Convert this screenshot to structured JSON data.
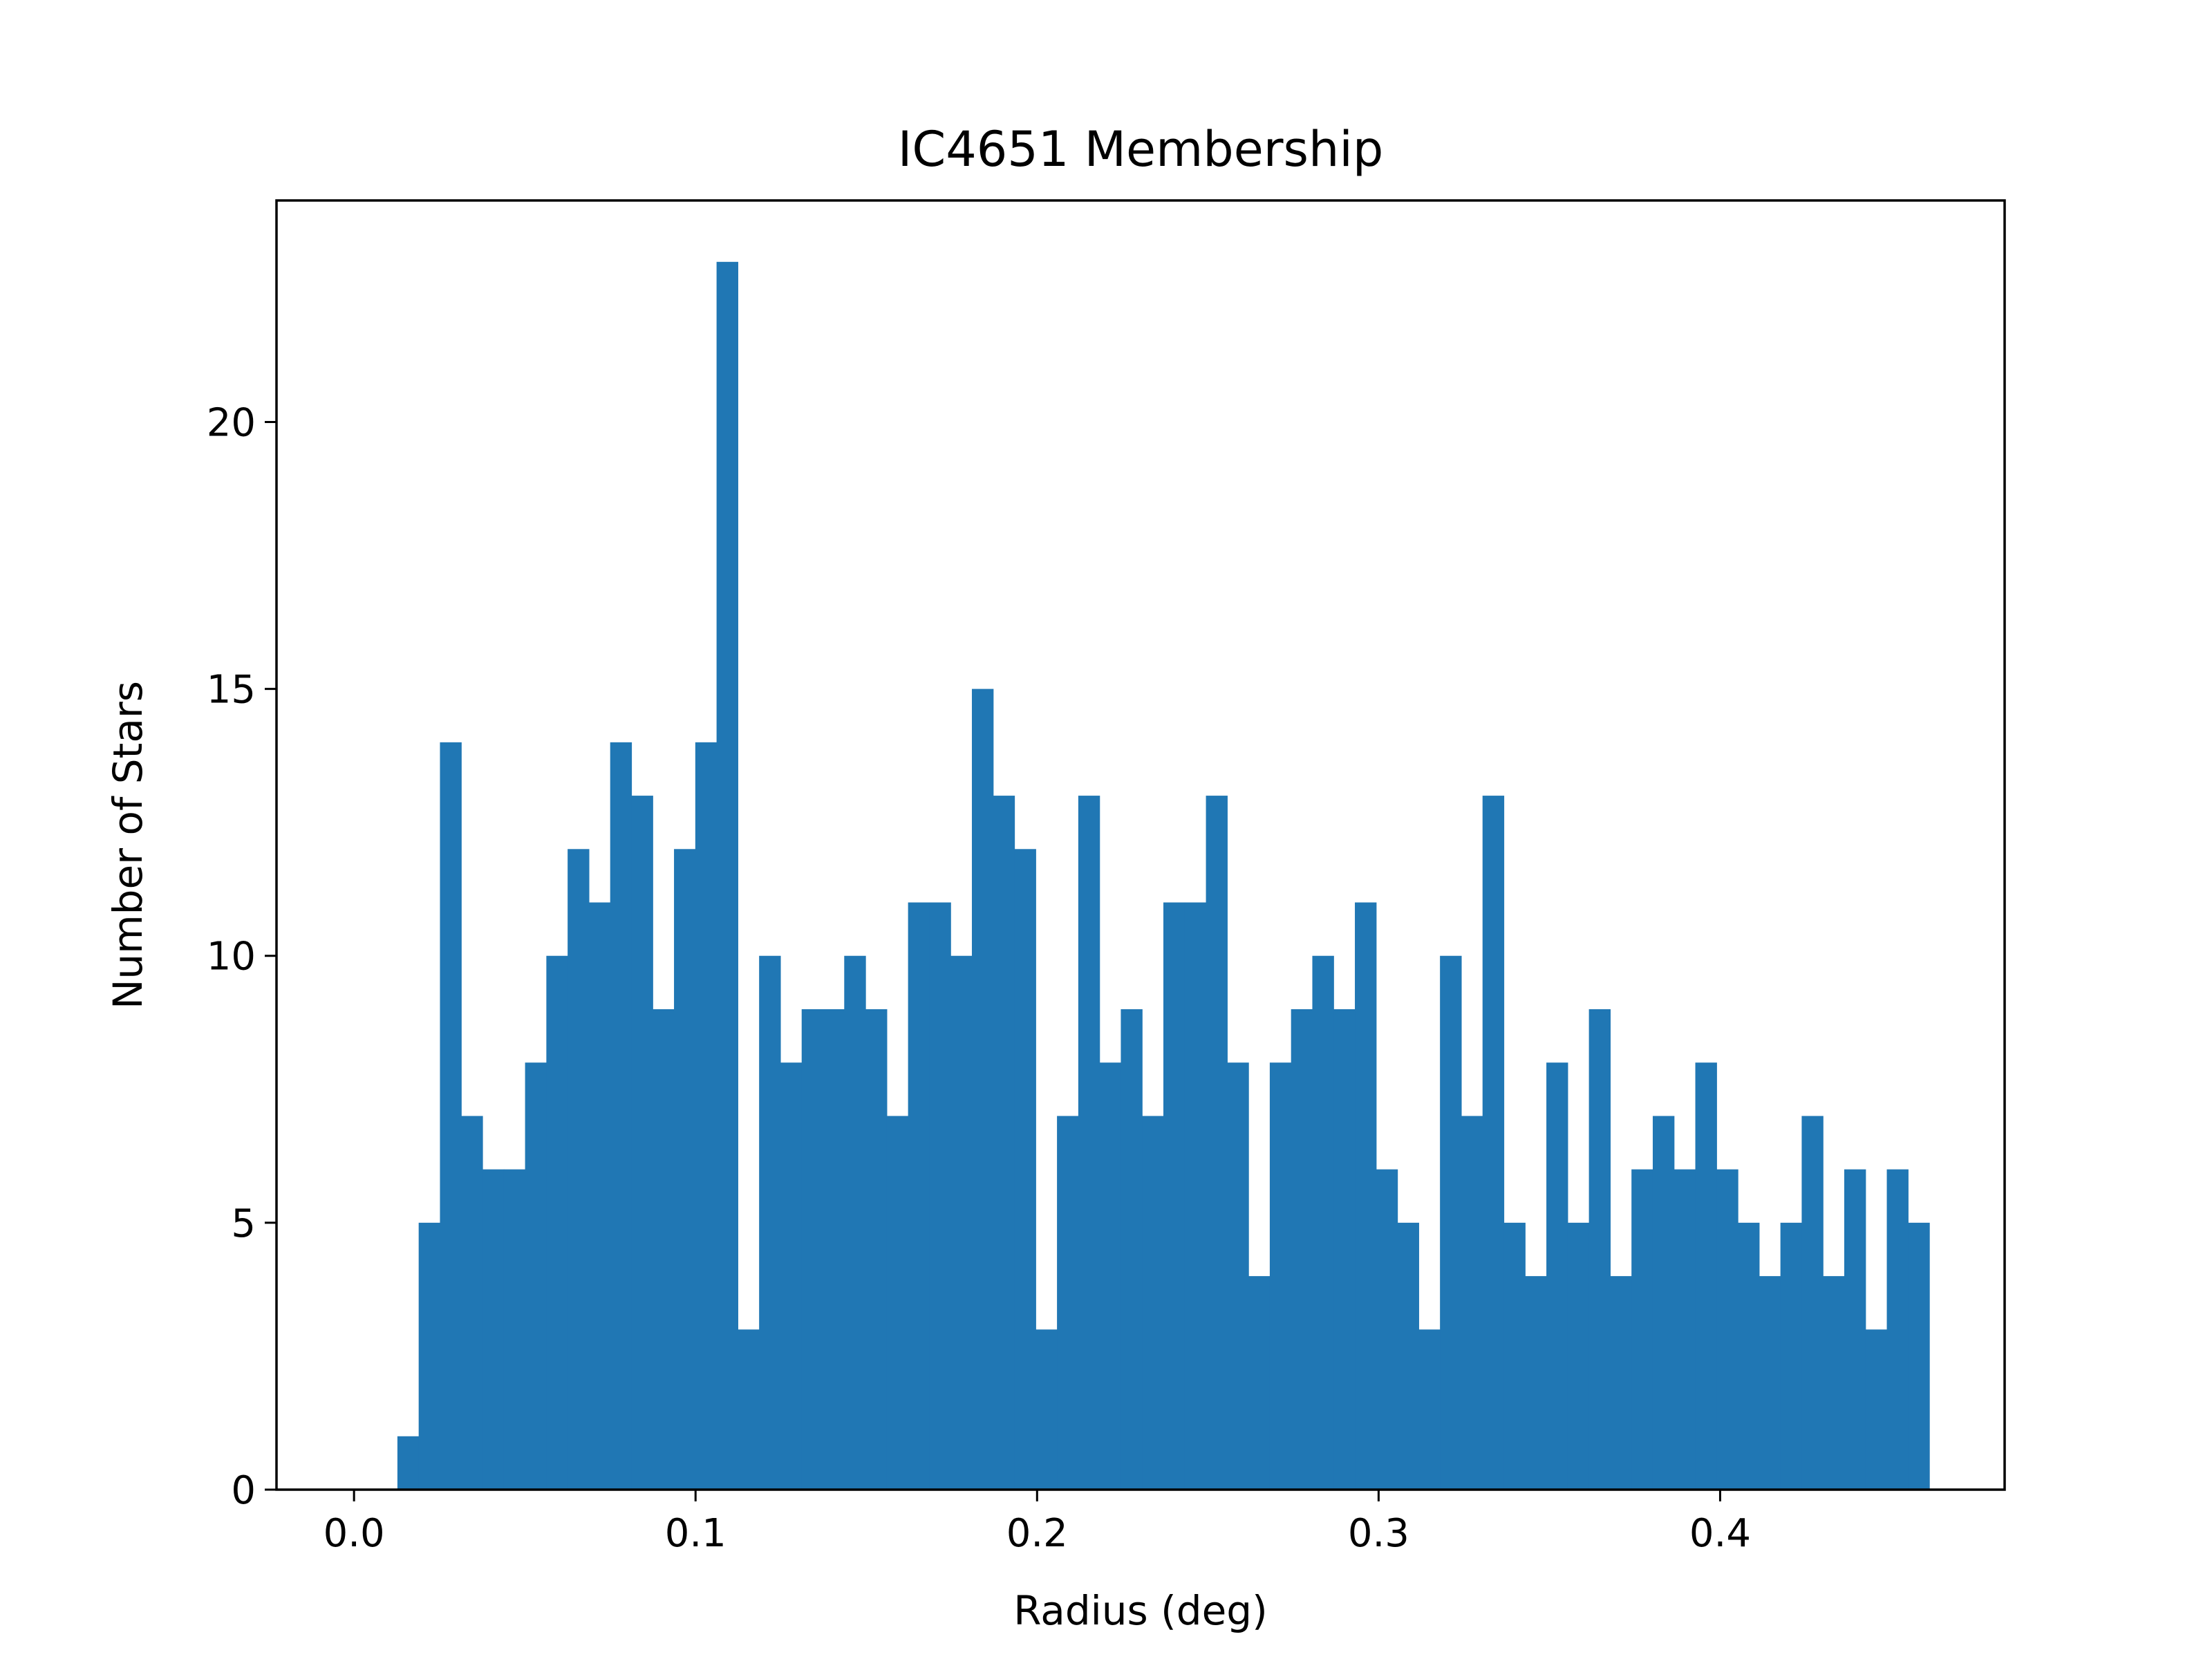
{
  "chart_data": {
    "type": "bar",
    "title": "IC4651 Membership",
    "xlabel": "Radius (deg)",
    "ylabel": "Number of Stars",
    "xlim": [
      -0.0227,
      0.4833
    ],
    "ylim": [
      0,
      24.15
    ],
    "xticks": [
      0.0,
      0.1,
      0.2,
      0.3,
      0.4
    ],
    "xtick_labels": [
      "0.0",
      "0.1",
      "0.2",
      "0.3",
      "0.4"
    ],
    "yticks": [
      0,
      5,
      10,
      15,
      20
    ],
    "ytick_labels": [
      "0",
      "5",
      "10",
      "15",
      "20"
    ],
    "bin_start": 0.0127,
    "bin_width": 0.00623,
    "values": [
      1,
      5,
      14,
      7,
      6,
      6,
      8,
      10,
      12,
      11,
      14,
      13,
      9,
      12,
      14,
      23,
      3,
      10,
      8,
      9,
      9,
      10,
      9,
      7,
      11,
      11,
      10,
      15,
      13,
      12,
      3,
      7,
      13,
      8,
      9,
      7,
      11,
      11,
      13,
      8,
      4,
      8,
      9,
      10,
      9,
      11,
      6,
      5,
      3,
      10,
      7,
      13,
      5,
      4,
      8,
      5,
      9,
      4,
      6,
      7,
      6,
      8,
      6,
      5,
      4,
      5,
      7,
      4,
      6,
      3,
      6,
      5
    ],
    "bar_color": "#2077b4",
    "grid": false,
    "legend": "none"
  }
}
